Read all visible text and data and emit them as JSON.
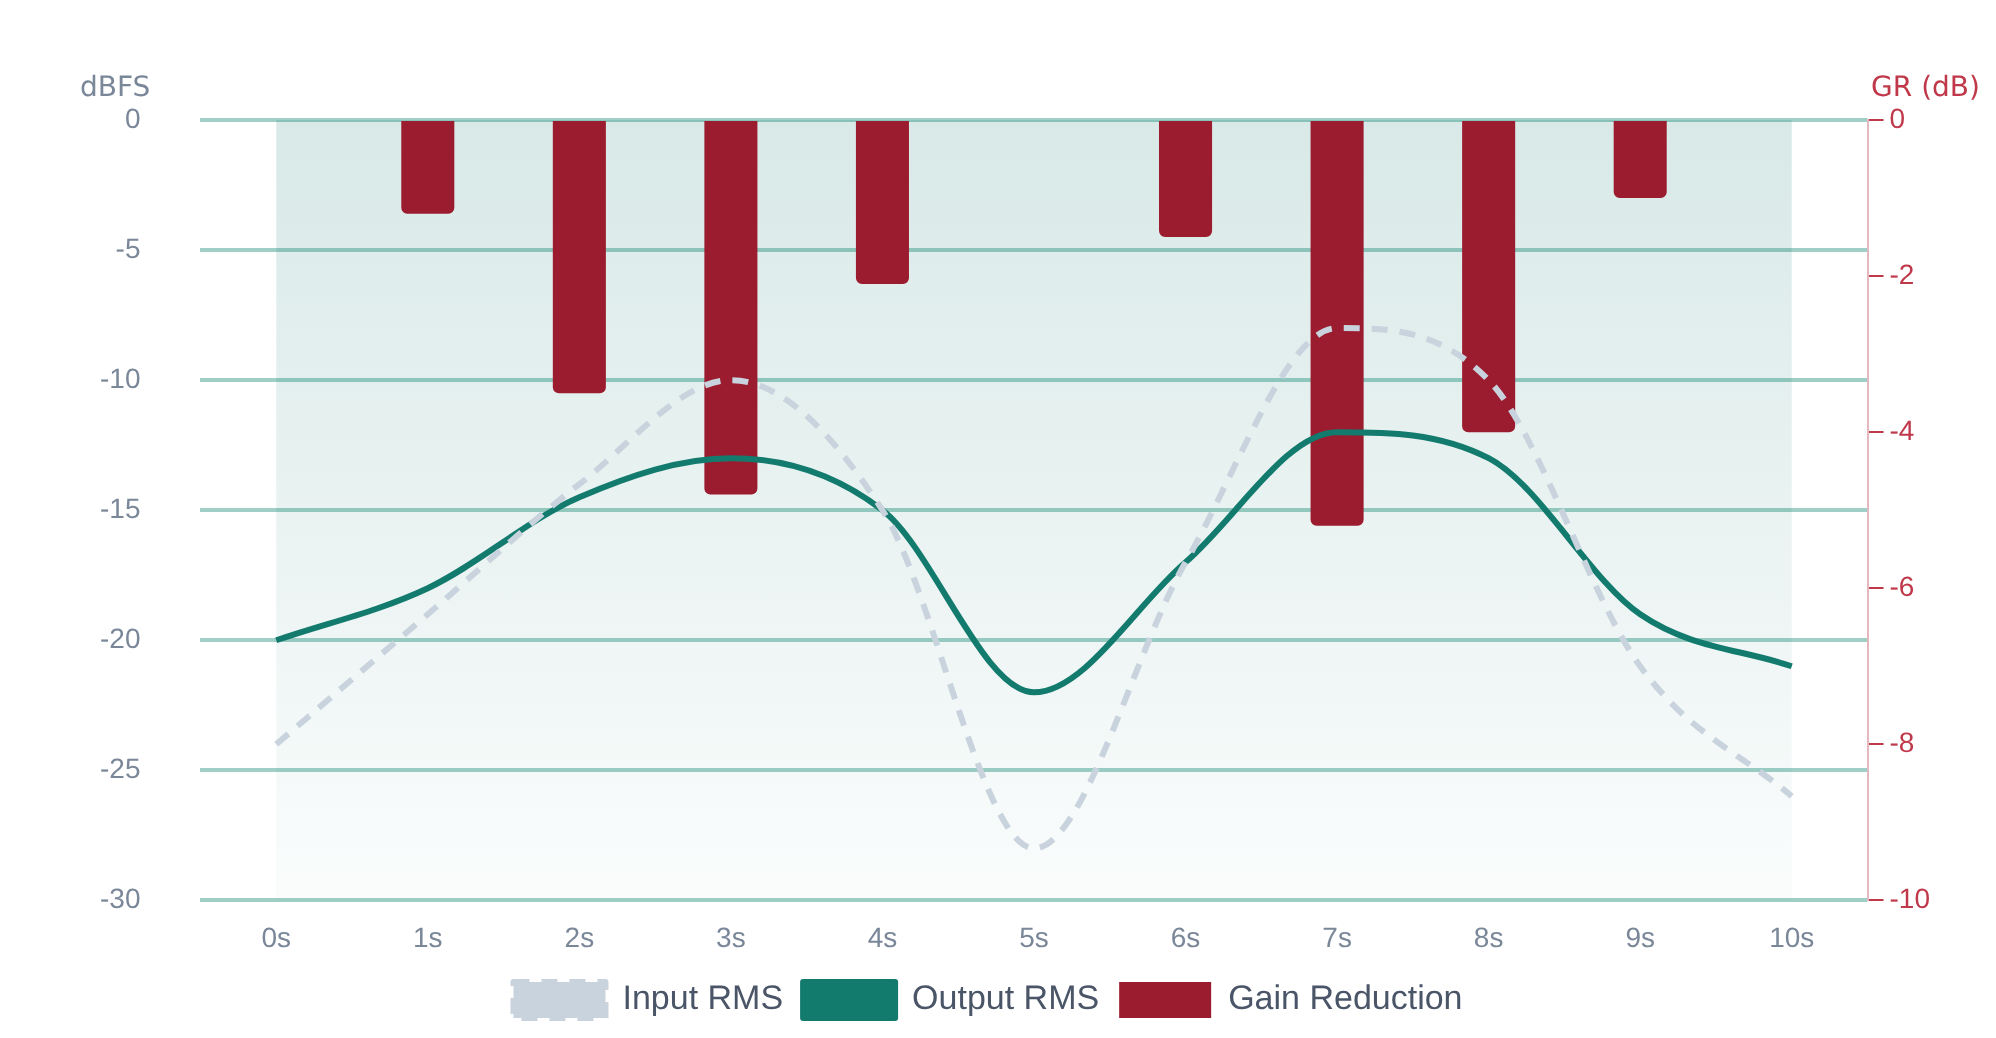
{
  "chart_data": {
    "type": "line",
    "ylabel": "dBFS",
    "y2label": "GR (dB)",
    "categories": [
      "0s",
      "1s",
      "2s",
      "3s",
      "4s",
      "5s",
      "6s",
      "7s",
      "8s",
      "9s",
      "10s"
    ],
    "series": [
      {
        "name": "Input RMS",
        "color": "#c8d3de",
        "line_style": "dashed",
        "marker": "none",
        "values": [
          -24,
          -19,
          -14,
          -10,
          -15,
          -28,
          -17,
          -8,
          -10,
          -21,
          -26
        ]
      },
      {
        "name": "Output RMS",
        "color": "#137a6e",
        "line_style": "solid",
        "marker": "none",
        "values": [
          -20,
          -18,
          -14.5,
          -13,
          -15,
          -22,
          -17,
          -12,
          -13,
          -19,
          -21
        ]
      },
      {
        "name": "Gain Reduction",
        "type": "bar",
        "axis": "y2",
        "color": "#9b1c2e",
        "values": [
          null,
          -1.2,
          -3.5,
          -4.8,
          -2.1,
          null,
          -1.5,
          -5.2,
          -4,
          -1,
          null
        ]
      }
    ],
    "ylim": [
      -30,
      0
    ],
    "yticks": [
      -30,
      -25,
      -20,
      -15,
      -10,
      -5,
      0
    ],
    "y2lim": [
      -10,
      0
    ],
    "y2ticks": [
      -10,
      -8,
      -6,
      -4,
      -2,
      0
    ],
    "bands": [
      {
        "axis": "y",
        "from": -30,
        "to": 0,
        "color": "#137a6e"
      }
    ],
    "grid": "y",
    "legend": "bottom"
  }
}
